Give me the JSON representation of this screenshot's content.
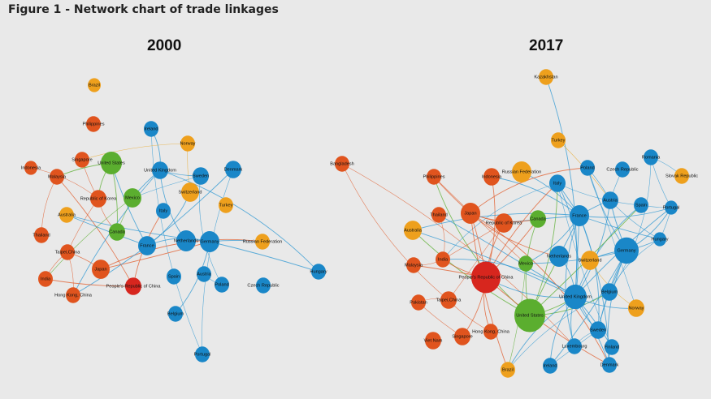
{
  "figure_title": "Figure 1 - Network chart of trade linkages",
  "panels": [
    {
      "title": "2000",
      "nodes": [
        {
          "label": "Brazil",
          "group": "orange"
        },
        {
          "label": "Philippines",
          "group": "red"
        },
        {
          "label": "Ireland",
          "group": "blue"
        },
        {
          "label": "Norway",
          "group": "orange"
        },
        {
          "label": "Indonesia",
          "group": "red"
        },
        {
          "label": "Singapore",
          "group": "red"
        },
        {
          "label": "United States",
          "group": "green"
        },
        {
          "label": "Malaysia",
          "group": "red"
        },
        {
          "label": "United Kingdom",
          "group": "blue"
        },
        {
          "label": "Sweden",
          "group": "blue"
        },
        {
          "label": "Denmark",
          "group": "blue"
        },
        {
          "label": "Republic of Korea",
          "group": "red"
        },
        {
          "label": "Mexico",
          "group": "green"
        },
        {
          "label": "Switzerland",
          "group": "orange"
        },
        {
          "label": "Australia",
          "group": "orange"
        },
        {
          "label": "Italy",
          "group": "blue"
        },
        {
          "label": "Turkey",
          "group": "orange"
        },
        {
          "label": "Thailand",
          "group": "red"
        },
        {
          "label": "Canada",
          "group": "green"
        },
        {
          "label": "Netherlands",
          "group": "blue"
        },
        {
          "label": "Germany",
          "group": "blue"
        },
        {
          "label": "Russian Federation",
          "group": "orange"
        },
        {
          "label": "France",
          "group": "blue"
        },
        {
          "label": "Taipei,China",
          "group": "red"
        },
        {
          "label": "Japan",
          "group": "red"
        },
        {
          "label": "Spain",
          "group": "blue"
        },
        {
          "label": "Austria",
          "group": "blue"
        },
        {
          "label": "Hungary",
          "group": "blue"
        },
        {
          "label": "India",
          "group": "red"
        },
        {
          "label": "Poland",
          "group": "blue"
        },
        {
          "label": "Czech Republic",
          "group": "blue"
        },
        {
          "label": "Hong Kong, China",
          "group": "red"
        },
        {
          "label": "People's Republic of China",
          "group": "red"
        },
        {
          "label": "Belgium",
          "group": "blue"
        },
        {
          "label": "Portugal",
          "group": "blue"
        }
      ]
    },
    {
      "title": "2017",
      "nodes": [
        {
          "label": "Kazakhstan",
          "group": "orange"
        },
        {
          "label": "Turkey",
          "group": "orange"
        },
        {
          "label": "Bangladesh",
          "group": "red"
        },
        {
          "label": "Romania",
          "group": "blue"
        },
        {
          "label": "Philippines",
          "group": "red"
        },
        {
          "label": "Indonesia",
          "group": "red"
        },
        {
          "label": "Russian Federation",
          "group": "orange"
        },
        {
          "label": "Poland",
          "group": "blue"
        },
        {
          "label": "Czech Republic",
          "group": "blue"
        },
        {
          "label": "Slovak Republic",
          "group": "orange"
        },
        {
          "label": "Italy",
          "group": "blue"
        },
        {
          "label": "Republic of Korea",
          "group": "red"
        },
        {
          "label": "Austria",
          "group": "blue"
        },
        {
          "label": "Spain",
          "group": "blue"
        },
        {
          "label": "Portugal",
          "group": "blue"
        },
        {
          "label": "Thailand",
          "group": "red"
        },
        {
          "label": "Japan",
          "group": "red"
        },
        {
          "label": "France",
          "group": "blue"
        },
        {
          "label": "Canada",
          "group": "green"
        },
        {
          "label": "Australia",
          "group": "orange"
        },
        {
          "label": "Hungary",
          "group": "blue"
        },
        {
          "label": "Netherlands",
          "group": "blue"
        },
        {
          "label": "Germany",
          "group": "blue"
        },
        {
          "label": "Malaysia",
          "group": "red"
        },
        {
          "label": "India",
          "group": "red"
        },
        {
          "label": "Mexico",
          "group": "green"
        },
        {
          "label": "Switzerland",
          "group": "orange"
        },
        {
          "label": "People's Republic of China",
          "group": "red"
        },
        {
          "label": "Belgium",
          "group": "blue"
        },
        {
          "label": "United Kingdom",
          "group": "blue"
        },
        {
          "label": "Pakistan",
          "group": "red"
        },
        {
          "label": "Taipei,China",
          "group": "red"
        },
        {
          "label": "United States",
          "group": "green"
        },
        {
          "label": "Norway",
          "group": "orange"
        },
        {
          "label": "Sweden",
          "group": "blue"
        },
        {
          "label": "Hong Kong, China",
          "group": "red"
        },
        {
          "label": "Singapore",
          "group": "red"
        },
        {
          "label": "Viet Nam",
          "group": "red"
        },
        {
          "label": "Luxembourg",
          "group": "blue"
        },
        {
          "label": "Finland",
          "group": "blue"
        },
        {
          "label": "Denmark",
          "group": "blue"
        },
        {
          "label": "Ireland",
          "group": "blue"
        },
        {
          "label": "Brazil",
          "group": "orange"
        }
      ]
    }
  ],
  "colors": {
    "background": "#e9e9e9",
    "red": "#e0541e",
    "china_red": "#d7261e",
    "blue": "#1a87c8",
    "green": "#5bae2f",
    "orange": "#eea01d"
  }
}
